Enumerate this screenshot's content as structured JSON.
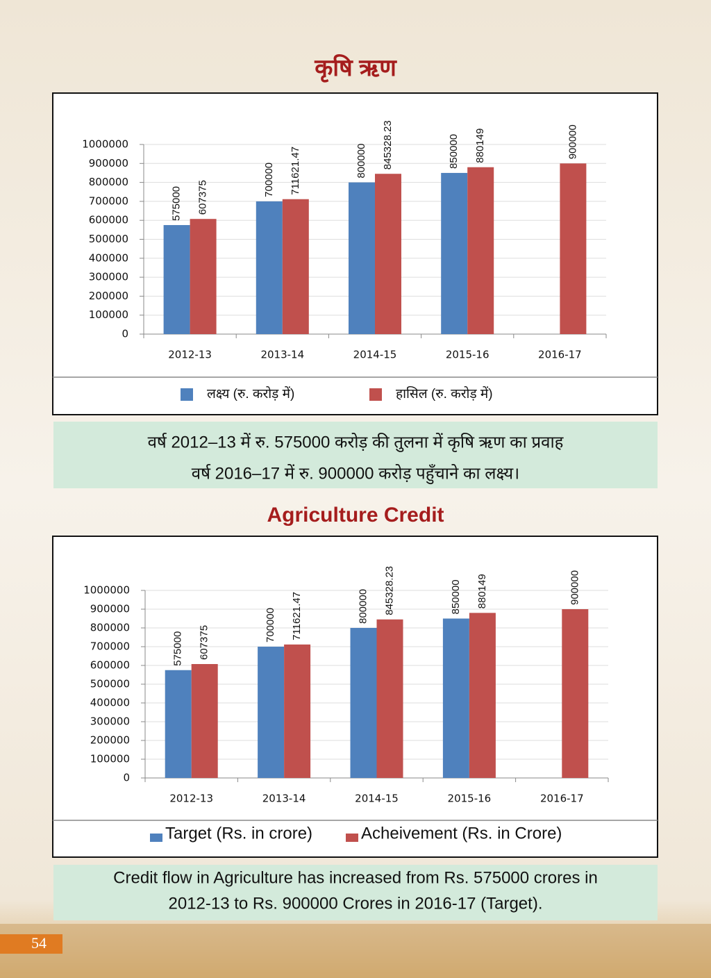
{
  "chart_data": [
    {
      "type": "bar",
      "title": "कृषि ऋण",
      "categories": [
        "2012-13",
        "2013-14",
        "2014-15",
        "2015-16",
        "2016-17"
      ],
      "series": [
        {
          "name": "लक्ष्य (रु. करोड़ में)",
          "color": "#4f81bd",
          "values": [
            575000,
            700000,
            800000,
            850000,
            null
          ]
        },
        {
          "name": "हासिल (रु. करोड़ में)",
          "color": "#c0504d",
          "values": [
            607375,
            711621.47,
            845328.23,
            880149,
            900000
          ]
        }
      ],
      "ylim": [
        0,
        1000000
      ],
      "yticks": [
        0,
        100000,
        200000,
        300000,
        400000,
        500000,
        600000,
        700000,
        800000,
        900000,
        1000000
      ],
      "grid": true,
      "legend": "bottom",
      "caption": [
        "वर्ष 2012–13 में रु. 575000 करोड़ की तुलना में कृषि ऋण का प्रवाह",
        "वर्ष 2016–17 में रु. 900000 करोड़ पहुँचाने का लक्ष्य।"
      ]
    },
    {
      "type": "bar",
      "title": "Agriculture Credit",
      "categories": [
        "2012-13",
        "2013-14",
        "2014-15",
        "2015-16",
        "2016-17"
      ],
      "series": [
        {
          "name": "Target (Rs. in crore)",
          "color": "#4f81bd",
          "values": [
            575000,
            700000,
            800000,
            850000,
            null
          ]
        },
        {
          "name": "Acheivement (Rs. in Crore)",
          "color": "#c0504d",
          "values": [
            607375,
            711621.47,
            845328.23,
            880149,
            900000
          ]
        }
      ],
      "ylim": [
        0,
        1000000
      ],
      "yticks": [
        0,
        100000,
        200000,
        300000,
        400000,
        500000,
        600000,
        700000,
        800000,
        900000,
        1000000
      ],
      "grid": true,
      "legend": "bottom",
      "caption": [
        "Credit flow in Agriculture has increased from Rs. 575000 crores in",
        "2012-13 to Rs. 900000 Crores in 2016-17 (Target)."
      ]
    }
  ],
  "page_number": 54
}
